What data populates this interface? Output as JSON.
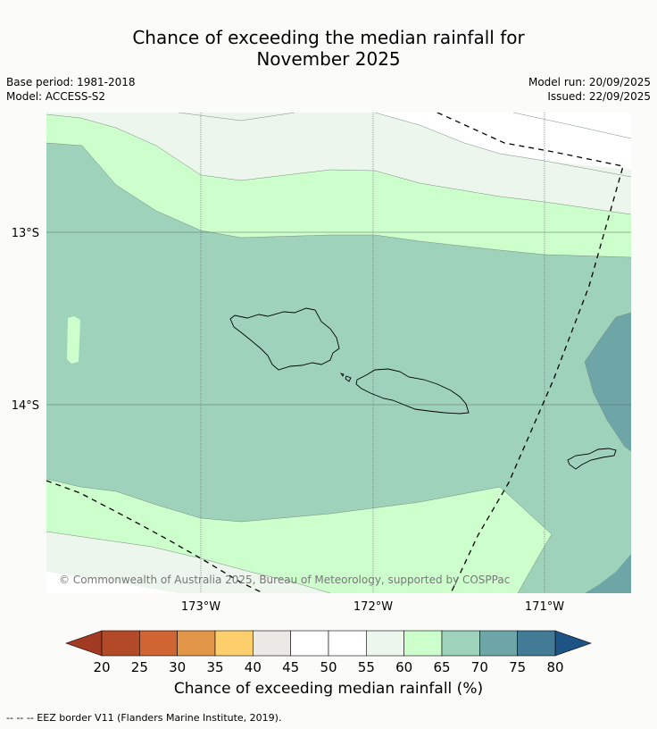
{
  "title_line1": "Chance of exceeding the median rainfall for",
  "title_line2": "November 2025",
  "base_period": "Base period: 1981-2018",
  "model": "Model: ACCESS-S2",
  "model_run": "Model run: 20/09/2025",
  "issued": "Issued: 22/09/2025",
  "copyright": "© Commonwealth of Australia 2025, Bureau of Meteorology, supported by COSPPac",
  "lat_labels": [
    "13°S",
    "14°S"
  ],
  "lon_labels": [
    "173°W",
    "172°W",
    "171°W"
  ],
  "colorbar": {
    "label": "Chance of exceeding median rainfall (%)",
    "ticks": [
      "20",
      "25",
      "30",
      "35",
      "40",
      "45",
      "50",
      "55",
      "60",
      "65",
      "70",
      "75",
      "80"
    ],
    "colors": [
      "#b24a28",
      "#cf6533",
      "#e29647",
      "#fcce6c",
      "#ebe9e6",
      "#ffffff",
      "#ffffff",
      "#ecf6ec",
      "#ccffcc",
      "#9ed2bb",
      "#6ea6a8",
      "#437a96"
    ],
    "low_extend_color": "#a03a22",
    "high_extend_color": "#1d5485"
  },
  "eez_note": "--  --  -- EEZ border V11 (Flanders Marine Institute, 2019)."
}
